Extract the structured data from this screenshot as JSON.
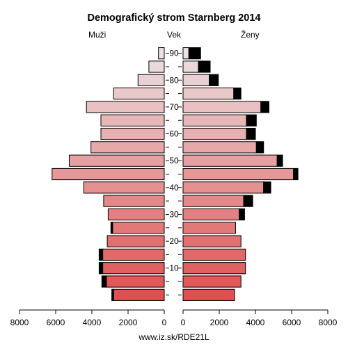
{
  "chart_data": {
    "type": "bar",
    "orientation": "horizontal-population-pyramid",
    "title": "Demografický strom Starnberg 2014",
    "left_label": "Muži",
    "center_label": "Vek",
    "right_label": "Ženy",
    "source": "www.iz.sk/RDE21L",
    "xlim": [
      0,
      8000
    ],
    "x_ticks": [
      8000,
      6000,
      4000,
      2000,
      0
    ],
    "x_ticks_right": [
      0,
      2000,
      4000,
      6000,
      8000
    ],
    "age_tick_labels": [
      "10",
      "20",
      "30",
      "40",
      "50",
      "60",
      "70",
      "80",
      "90"
    ],
    "age_groups_bottom_up": [
      "0-4",
      "5-9",
      "10-14",
      "15-19",
      "20-24",
      "25-29",
      "30-34",
      "35-39",
      "40-44",
      "45-49",
      "50-54",
      "55-59",
      "60-64",
      "65-69",
      "70-74",
      "75-79",
      "80-84",
      "85-89",
      "90+"
    ],
    "series": [
      {
        "name": "Muži",
        "values": [
          2800,
          3200,
          3400,
          3400,
          3150,
          2850,
          3100,
          3350,
          4450,
          6200,
          5250,
          4050,
          3500,
          3500,
          4300,
          2800,
          1450,
          850,
          320
        ],
        "surplus": [
          100,
          250,
          200,
          200,
          0,
          100,
          0,
          0,
          0,
          0,
          0,
          0,
          0,
          0,
          0,
          0,
          0,
          0,
          0
        ]
      },
      {
        "name": "Ženy",
        "values": [
          2850,
          3200,
          3450,
          3450,
          3200,
          2900,
          3100,
          3350,
          4450,
          6100,
          5200,
          4050,
          3500,
          3500,
          4300,
          2800,
          1450,
          850,
          320
        ],
        "surplus": [
          0,
          0,
          0,
          0,
          0,
          0,
          300,
          500,
          400,
          250,
          300,
          400,
          500,
          550,
          450,
          400,
          500,
          650,
          650
        ]
      }
    ],
    "colors": {
      "surplus": "#000000",
      "outline": "#000000",
      "gradient_young": "#e05050",
      "gradient_old": "#ebe0e2"
    }
  }
}
